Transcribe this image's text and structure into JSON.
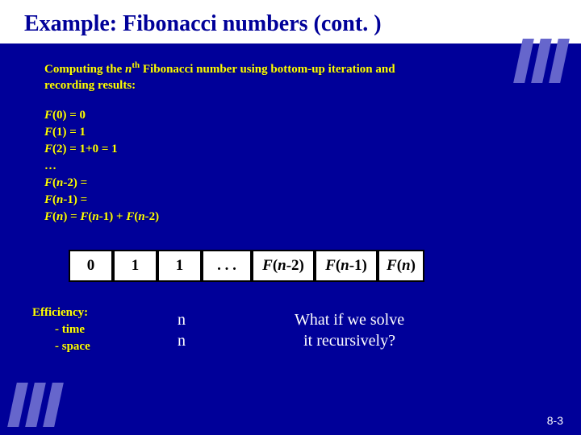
{
  "title": "Example: Fibonacci numbers  (cont. )",
  "intro_line1_a": "Computing the ",
  "intro_line1_b": "n",
  "intro_line1_c": "th",
  "intro_line1_d": " Fibonacci number using bottom-up iteration and",
  "intro_line2": "recording results:",
  "formula": {
    "l1a": "F",
    "l1b": "(0) = 0",
    "l2a": "F",
    "l2b": "(1) = 1",
    "l3a": "F",
    "l3b": "(2) = 1+0 = 1",
    "l4": "…",
    "l5a": "F",
    "l5b": "(",
    "l5c": "n",
    "l5d": "-2) =",
    "l6a": "F",
    "l6b": "(",
    "l6c": "n",
    "l6d": "-1) =",
    "l7a": "F",
    "l7b": "(",
    "l7c": "n",
    "l7d": ") = ",
    "l7e": "F",
    "l7f": "(",
    "l7g": "n",
    "l7h": "-1) + ",
    "l7i": "F",
    "l7j": "(",
    "l7k": "n",
    "l7l": "-2)"
  },
  "table": {
    "cells": [
      {
        "text": "0",
        "width": 55
      },
      {
        "text": "1",
        "width": 55
      },
      {
        "text": "1",
        "width": 55
      },
      {
        "text": ". . .",
        "width": 62
      },
      {
        "html": "<span class='italic'>F</span>(<span class='italic'>n</span>-2)",
        "width": 78
      },
      {
        "html": "<span class='italic'>F</span>(<span class='italic'>n</span>-1)",
        "width": 78
      },
      {
        "html": "<span class='italic'>F</span>(<span class='italic'>n</span>)",
        "width": 58
      }
    ]
  },
  "efficiency": {
    "title": "Efficiency:",
    "time": "- time",
    "space": "- space"
  },
  "nn": {
    "l1": "n",
    "l2": "n"
  },
  "question": {
    "l1": "What if we solve",
    "l2": "it recursively?"
  },
  "page_num": "8-3",
  "colors": {
    "bg": "#000099",
    "header_bg": "#ffffff",
    "title": "#000099",
    "body_text": "#ffff00",
    "white_text": "#ffffff",
    "decoration": "#6666cc"
  }
}
